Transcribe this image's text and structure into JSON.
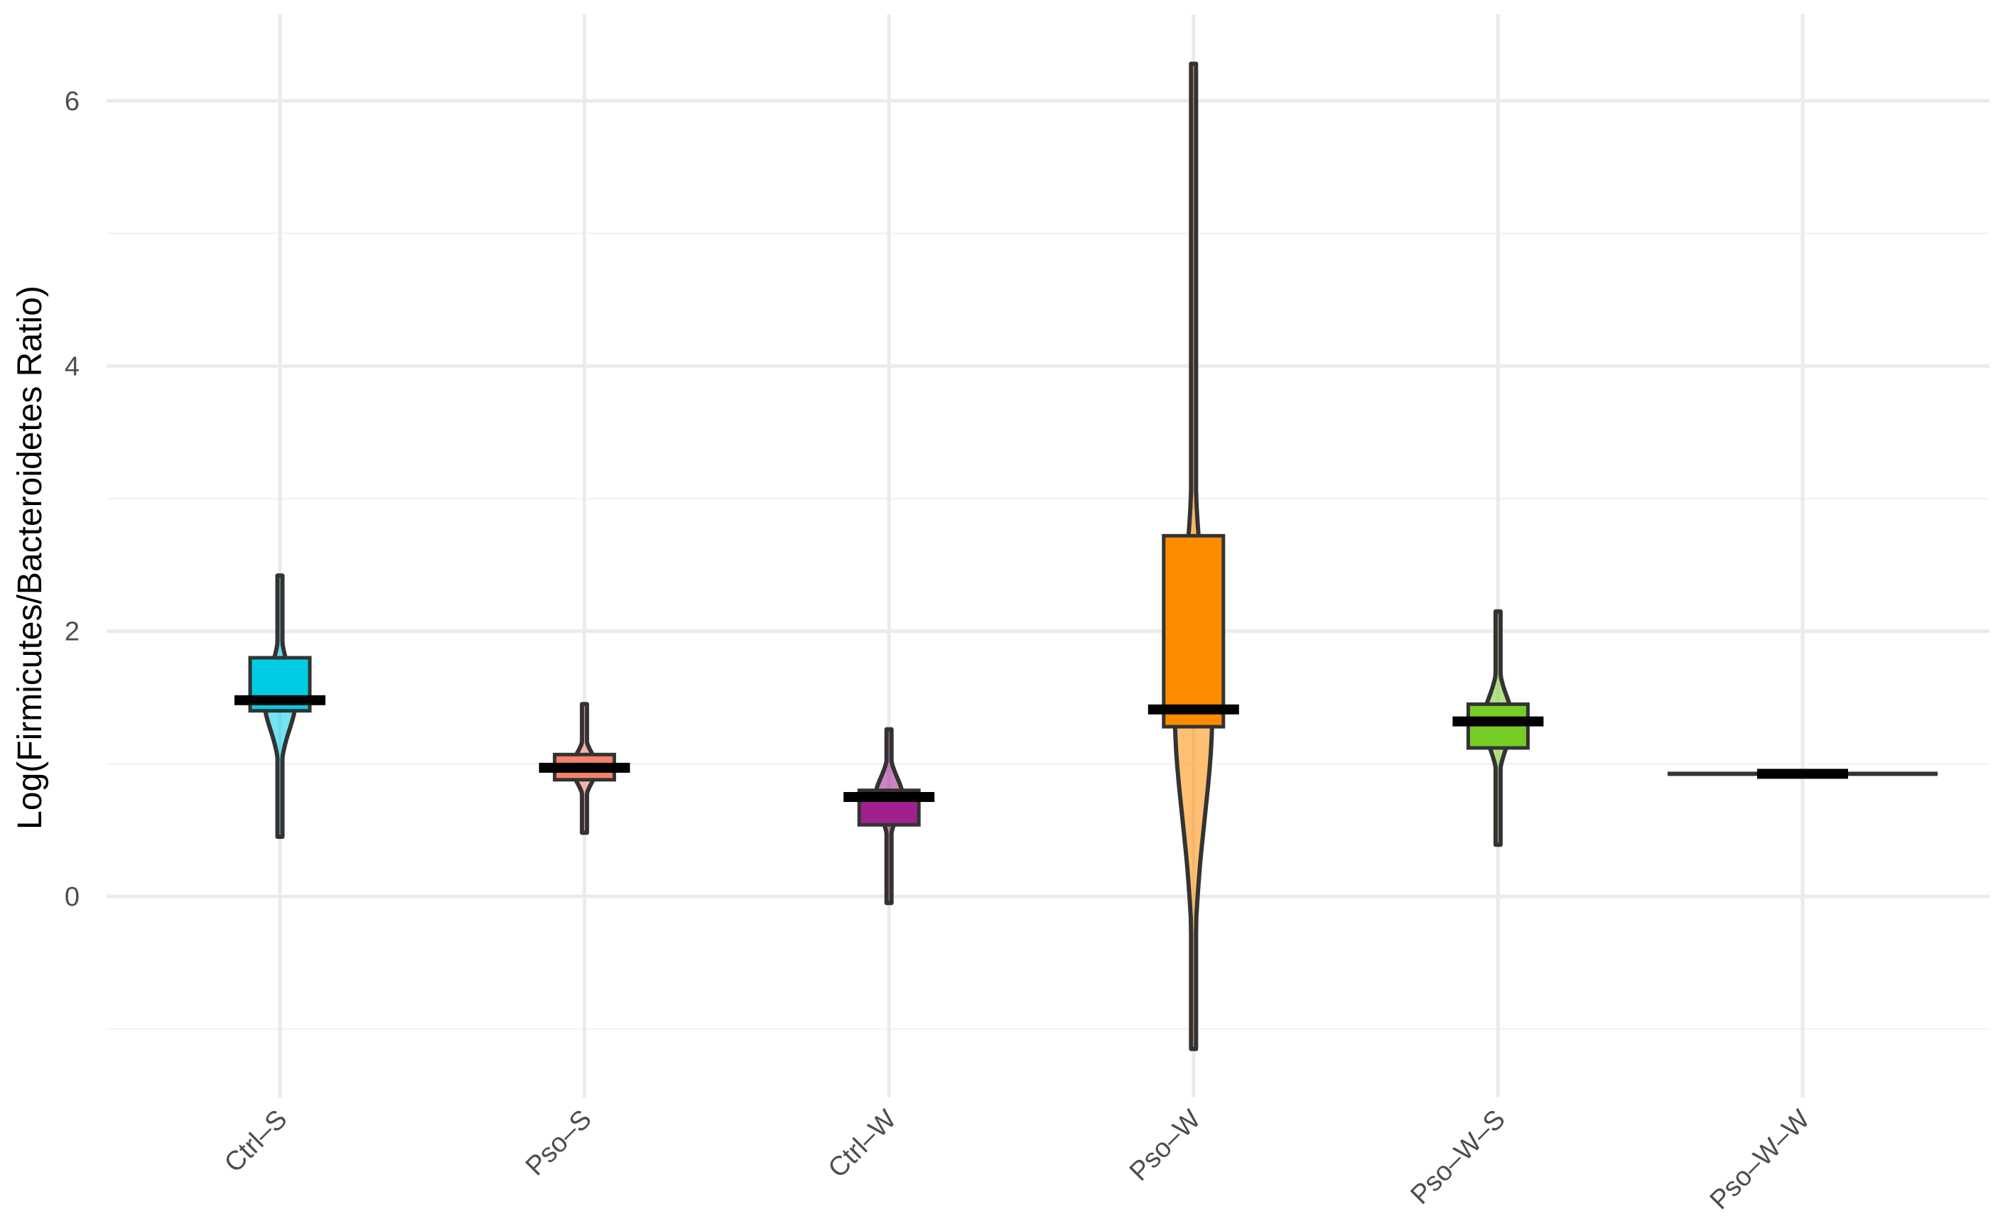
{
  "chart_data": {
    "type": "violin-box",
    "title": "",
    "xlabel": "",
    "ylabel": "Log(Firmicutes/Bacteroidetes Ratio)",
    "ylim": [
      -1.25,
      6.6
    ],
    "y_ticks": [
      0,
      2,
      4,
      6
    ],
    "y_minor_ticks": [
      -1,
      1,
      3,
      5
    ],
    "grid": true,
    "legend": "none",
    "categories": [
      "Ctrl–S",
      "Pso–S",
      "Ctrl–W",
      "Pso–W",
      "Pso–W–S",
      "Pso–W–W"
    ],
    "series": [
      {
        "category": "Ctrl–S",
        "color": "#00CDE3",
        "violin_min": 0.45,
        "violin_max": 2.42,
        "q1": 1.4,
        "median": 1.48,
        "q3": 1.8
      },
      {
        "category": "Pso–S",
        "color": "#F5836C",
        "violin_min": 0.48,
        "violin_max": 1.45,
        "q1": 0.88,
        "median": 0.97,
        "q3": 1.07
      },
      {
        "category": "Ctrl–W",
        "color": "#A0208E",
        "violin_min": -0.05,
        "violin_max": 1.26,
        "q1": 0.54,
        "median": 0.75,
        "q3": 0.8
      },
      {
        "category": "Pso–W",
        "color": "#FF8C00",
        "violin_min": -1.15,
        "violin_max": 6.28,
        "q1": 1.28,
        "median": 1.41,
        "q3": 2.72
      },
      {
        "category": "Pso–W–S",
        "color": "#76CD26",
        "violin_min": 0.39,
        "violin_max": 2.15,
        "q1": 1.12,
        "median": 1.32,
        "q3": 1.45
      },
      {
        "category": "Pso–W–W",
        "color": "#1E90FF",
        "violin_min": 0.91,
        "violin_max": 0.94,
        "q1": 0.91,
        "median": 0.925,
        "q3": 0.94
      }
    ]
  }
}
